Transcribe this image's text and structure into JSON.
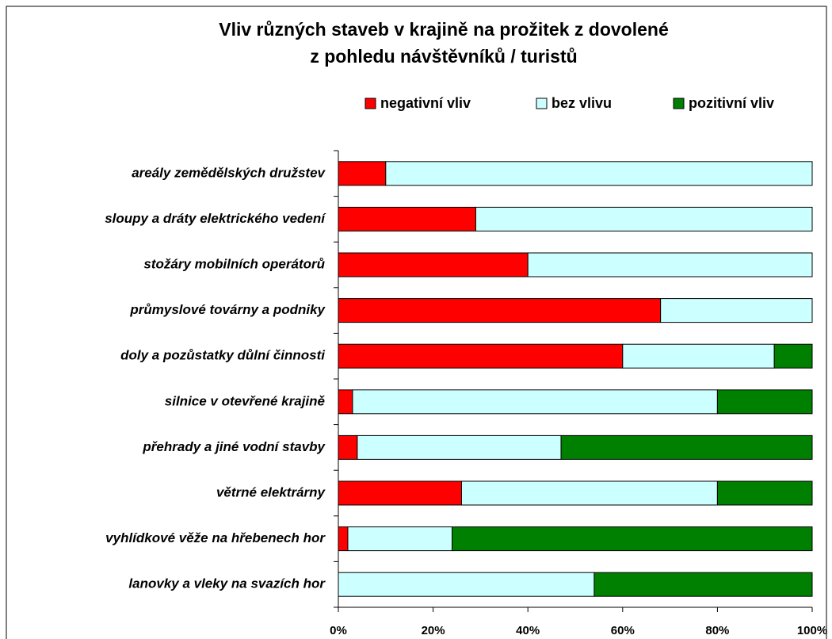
{
  "chart_data": {
    "type": "stacked_barh",
    "title": "Vliv různých staveb v krajině na prožitek z dovolené",
    "subtitle": "z pohledu návštěvníků / turistů",
    "categories": [
      "areály zemědělských družstev",
      "sloupy a dráty elektrického vedení",
      "stožáry mobilních operátorů",
      "průmyslové továrny a podniky",
      "doly a pozůstatky důlní činnosti",
      "silnice v otevřené krajině",
      "přehrady a jiné vodní stavby",
      "větrné elektrárny",
      "vyhlídkové věže na hřebenech hor",
      "lanovky a vleky na svazích hor"
    ],
    "series": [
      {
        "name": "negativní vliv",
        "color": "#ff0000",
        "values": [
          10,
          29,
          40,
          68,
          60,
          3,
          4,
          26,
          2,
          0
        ]
      },
      {
        "name": "bez vlivu",
        "color": "#ccffff",
        "values": [
          90,
          71,
          60,
          32,
          32,
          77,
          43,
          54,
          22,
          54
        ]
      },
      {
        "name": "pozitivní vliv",
        "color": "#008000",
        "values": [
          0,
          0,
          0,
          0,
          8,
          20,
          53,
          20,
          76,
          46
        ]
      }
    ],
    "xlim": [
      0,
      100
    ],
    "xticks": [
      {
        "value": 0,
        "label": "0%"
      },
      {
        "value": 20,
        "label": "20%"
      },
      {
        "value": 40,
        "label": "40%"
      },
      {
        "value": 60,
        "label": "60%"
      },
      {
        "value": 80,
        "label": "80%"
      },
      {
        "value": 100,
        "label": "100%"
      }
    ],
    "legend": "top"
  }
}
